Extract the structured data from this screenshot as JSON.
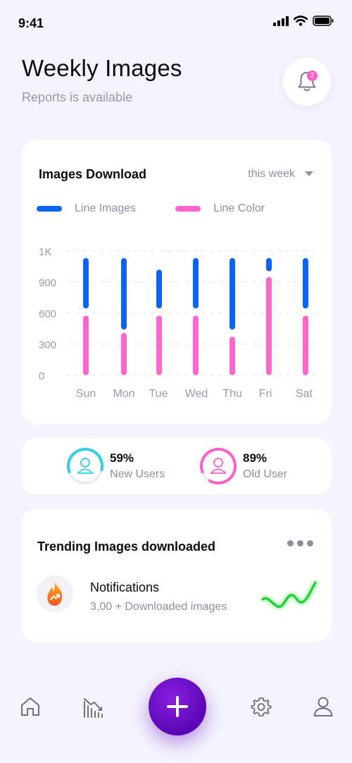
{
  "status_bar": {
    "time": "9:41"
  },
  "header": {
    "title": "Weekly Images",
    "subtitle": "Reports is available",
    "notification_count": "2"
  },
  "chart_card": {
    "title": "Images Download",
    "period": "this week"
  },
  "chart_data": {
    "type": "bar",
    "title": "Images Download",
    "categories": [
      "Sun",
      "Mon",
      "Tue",
      "Wed",
      "Thu",
      "Fri",
      "Sat"
    ],
    "y_ticks": [
      "1K",
      "900",
      "600",
      "300",
      "0"
    ],
    "ylim": [
      0,
      1000
    ],
    "legend_placement": "top-left",
    "grid": true,
    "series": [
      {
        "name": "Line Images",
        "color": "#0c63f0",
        "ranges": [
          [
            560,
            960
          ],
          [
            390,
            1090
          ],
          [
            560,
            850
          ],
          [
            560,
            1130
          ],
          [
            390,
            1130
          ],
          [
            860,
            1130
          ],
          [
            560,
            1130
          ]
        ]
      },
      {
        "name": "Line Color",
        "color": "#ff66cc",
        "ranges": [
          [
            0,
            480
          ],
          [
            0,
            340
          ],
          [
            0,
            480
          ],
          [
            0,
            480
          ],
          [
            0,
            310
          ],
          [
            0,
            790
          ],
          [
            0,
            480
          ]
        ]
      }
    ]
  },
  "user_stats": [
    {
      "value": "59%",
      "label": "New Users",
      "fraction": 0.59,
      "color": "#2fd2e3"
    },
    {
      "value": "89%",
      "label": "Old User",
      "fraction": 0.89,
      "color": "#ff5fc7"
    }
  ],
  "trending": {
    "title": "Trending Images downloaded",
    "item_name": "Notifications",
    "item_desc": "3,00 + Downloaded images"
  },
  "nav": {
    "items": [
      "home-icon",
      "analytics-icon",
      "add-icon",
      "settings-icon",
      "profile-icon"
    ],
    "fab_color": "#6a0ccf"
  }
}
